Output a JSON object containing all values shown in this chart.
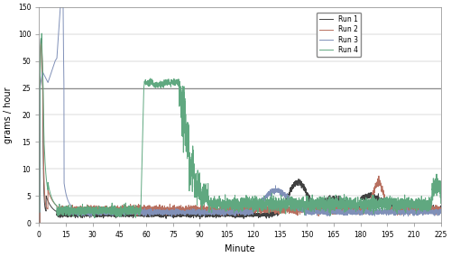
{
  "xlabel": "Minute",
  "ylabel": "grams / hour",
  "xlim": [
    0,
    225
  ],
  "xticks": [
    0,
    15,
    30,
    45,
    60,
    75,
    90,
    105,
    120,
    135,
    150,
    165,
    180,
    195,
    210,
    225
  ],
  "ytick_vals": [
    0,
    5,
    10,
    15,
    20,
    25,
    50,
    100,
    150
  ],
  "colors": {
    "run1": "#404040",
    "run2": "#b87060",
    "run3": "#8090b8",
    "run4": "#60a880"
  },
  "legend_labels": [
    "Run 1",
    "Run 2",
    "Run 3",
    "Run 4"
  ],
  "background_color": "#ffffff",
  "line_width": 0.7
}
